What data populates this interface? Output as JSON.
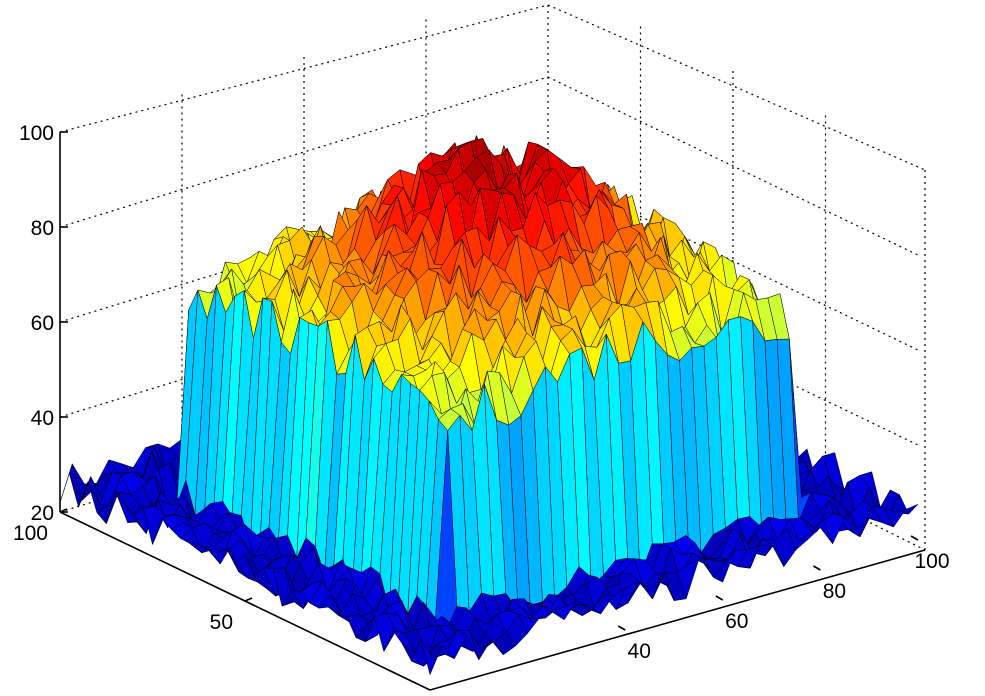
{
  "chart_data": {
    "type": "surface",
    "title": "",
    "xlabel": "",
    "ylabel": "",
    "zlabel": "",
    "xlim": [
      1,
      100
    ],
    "ylim": [
      1,
      100
    ],
    "zlim": [
      20,
      100
    ],
    "grid": true,
    "colormap": "jet",
    "z_ticks": [
      "20",
      "40",
      "60",
      "80",
      "100"
    ],
    "left_axis_ticks": [
      "50",
      "100"
    ],
    "right_axis_ticks": [
      "40",
      "60",
      "80",
      "100"
    ],
    "surface": {
      "description_values": {
        "background_level": 22,
        "plateau_level": 62,
        "peak_level": 95,
        "plateau_range_rows": [
          15,
          85
        ],
        "plateau_range_cols": [
          15,
          85
        ]
      }
    }
  }
}
